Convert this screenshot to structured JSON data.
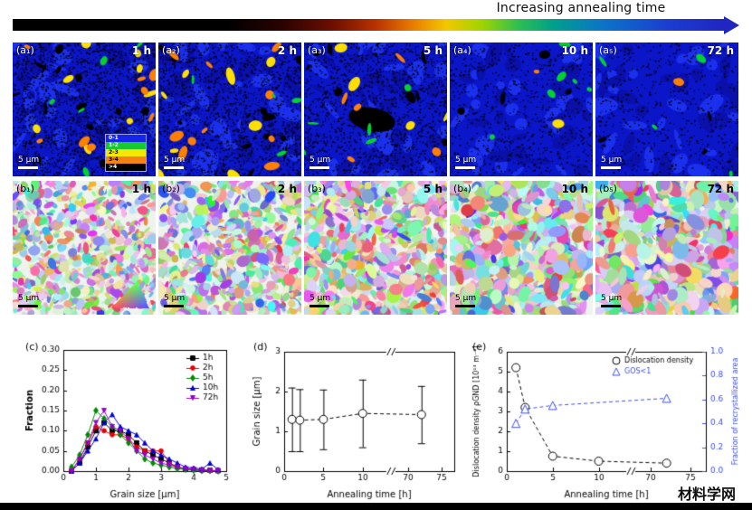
{
  "header": {
    "title": "Increasing annealing time"
  },
  "row_a": {
    "panels": [
      {
        "label": "(a₁)",
        "time": "1 h",
        "scale": "5 μm"
      },
      {
        "label": "(a₂)",
        "time": "2 h",
        "scale": "5 μm"
      },
      {
        "label": "(a₃)",
        "time": "5 h",
        "scale": "5 μm"
      },
      {
        "label": "(a₄)",
        "time": "10 h",
        "scale": "5 μm"
      },
      {
        "label": "(a₅)",
        "time": "72 h",
        "scale": "5 μm"
      }
    ],
    "legend": {
      "items": [
        {
          "label": "0-1",
          "color": "#1626e8"
        },
        {
          "label": "1-2",
          "color": "#18c832"
        },
        {
          "label": "2-3",
          "color": "#f5e800"
        },
        {
          "label": "3-4",
          "color": "#f58214"
        },
        {
          "label": ">4",
          "color": "#000000"
        }
      ]
    }
  },
  "row_b": {
    "panels": [
      {
        "label": "(b₁)",
        "time": "1 h",
        "scale": "5 μm"
      },
      {
        "label": "(b₂)",
        "time": "2 h",
        "scale": "5 μm"
      },
      {
        "label": "(b₃)",
        "time": "5 h",
        "scale": "5 μm"
      },
      {
        "label": "(b₄)",
        "time": "10 h",
        "scale": "5 μm"
      },
      {
        "label": "(b₅)",
        "time": "72 h",
        "scale": "5 μm"
      }
    ]
  },
  "watermark": "材料学网",
  "chart_data": [
    {
      "id": "c",
      "type": "line",
      "title": "(c)",
      "xlabel": "Grain size [μm]",
      "ylabel": "Fraction",
      "xlim": [
        0,
        5
      ],
      "ylim": [
        0,
        0.3
      ],
      "xticks": [
        0,
        1,
        2,
        3,
        4,
        5
      ],
      "yticks": [
        0.0,
        0.05,
        0.1,
        0.15,
        0.2,
        0.25,
        0.3
      ],
      "legend_position": "top-right",
      "x": [
        0.25,
        0.5,
        0.75,
        1.0,
        1.25,
        1.5,
        1.75,
        2.0,
        2.25,
        2.5,
        2.75,
        3.0,
        3.25,
        3.5,
        3.75,
        4.0,
        4.25,
        4.5,
        4.75
      ],
      "series": [
        {
          "name": "1h",
          "color": "#000000",
          "marker": "square",
          "y": [
            0.0,
            0.02,
            0.06,
            0.1,
            0.12,
            0.1,
            0.1,
            0.09,
            0.07,
            0.05,
            0.04,
            0.03,
            0.02,
            0.01,
            0.005,
            0.004,
            0.003,
            0.002,
            0.001
          ]
        },
        {
          "name": "2h",
          "color": "#e60000",
          "marker": "circle",
          "y": [
            0.0,
            0.03,
            0.07,
            0.11,
            0.1,
            0.09,
            0.09,
            0.08,
            0.06,
            0.05,
            0.05,
            0.05,
            0.02,
            0.01,
            0.006,
            0.004,
            0.002,
            0.001,
            0.001
          ]
        },
        {
          "name": "5h",
          "color": "#008a00",
          "marker": "diamond",
          "y": [
            0.01,
            0.04,
            0.09,
            0.15,
            0.13,
            0.11,
            0.09,
            0.07,
            0.05,
            0.03,
            0.02,
            0.015,
            0.01,
            0.006,
            0.004,
            0.002,
            0.001,
            0.001,
            0.0
          ]
        },
        {
          "name": "10h",
          "color": "#0000d0",
          "marker": "triangle",
          "y": [
            0.0,
            0.02,
            0.05,
            0.08,
            0.12,
            0.14,
            0.11,
            0.1,
            0.09,
            0.07,
            0.05,
            0.04,
            0.03,
            0.02,
            0.01,
            0.008,
            0.005,
            0.02,
            0.004
          ]
        },
        {
          "name": "72h",
          "color": "#9400d3",
          "marker": "triangle-down",
          "y": [
            0.0,
            0.03,
            0.07,
            0.12,
            0.15,
            0.11,
            0.1,
            0.08,
            0.05,
            0.04,
            0.03,
            0.02,
            0.015,
            0.01,
            0.006,
            0.004,
            0.002,
            0.001,
            0.001
          ]
        }
      ]
    },
    {
      "id": "d",
      "type": "scatter",
      "title": "(d)",
      "xlabel": "Annealing time [h]",
      "ylabel": "Grain size [μm]",
      "ylim": [
        0,
        3
      ],
      "yticks": [
        0,
        1,
        2,
        3
      ],
      "axis_break": true,
      "xticks_left": [
        0,
        5,
        10
      ],
      "xticks_right": [
        70,
        75
      ],
      "x": [
        1,
        2,
        5,
        10,
        72
      ],
      "y": [
        1.3,
        1.28,
        1.3,
        1.45,
        1.42
      ],
      "yerr": [
        0.8,
        0.78,
        0.75,
        0.85,
        0.72
      ]
    },
    {
      "id": "e",
      "type": "dual-line",
      "title": "(e)",
      "xlabel": "Annealing time [h]",
      "ylabel_left": "Dislocation density ρGND [10¹³ m⁻²]",
      "ylabel_right": "Fraction of recrystallized area",
      "ylim_left": [
        0,
        6
      ],
      "yticks_left": [
        0,
        1,
        2,
        3,
        4,
        5,
        6
      ],
      "ylim_right": [
        0,
        1.0
      ],
      "yticks_right": [
        0.0,
        0.2,
        0.4,
        0.6,
        0.8,
        1.0
      ],
      "axis_break": true,
      "xticks_left": [
        0,
        5,
        10
      ],
      "xticks_right": [
        70,
        75
      ],
      "accent_blue": "#3c50e0",
      "legend": [
        {
          "label": "Dislocation density",
          "marker": "circle",
          "color": "#000000"
        },
        {
          "label": "GOS<1",
          "marker": "triangle",
          "color": "#3c50e0"
        }
      ],
      "dislocation_density": {
        "x": [
          1,
          2,
          5,
          10,
          72
        ],
        "y": [
          5.2,
          3.2,
          0.75,
          0.5,
          0.4
        ]
      },
      "recrystallized_fraction": {
        "x": [
          1,
          2,
          5,
          72
        ],
        "y": [
          0.4,
          0.52,
          0.55,
          0.61
        ]
      }
    }
  ]
}
